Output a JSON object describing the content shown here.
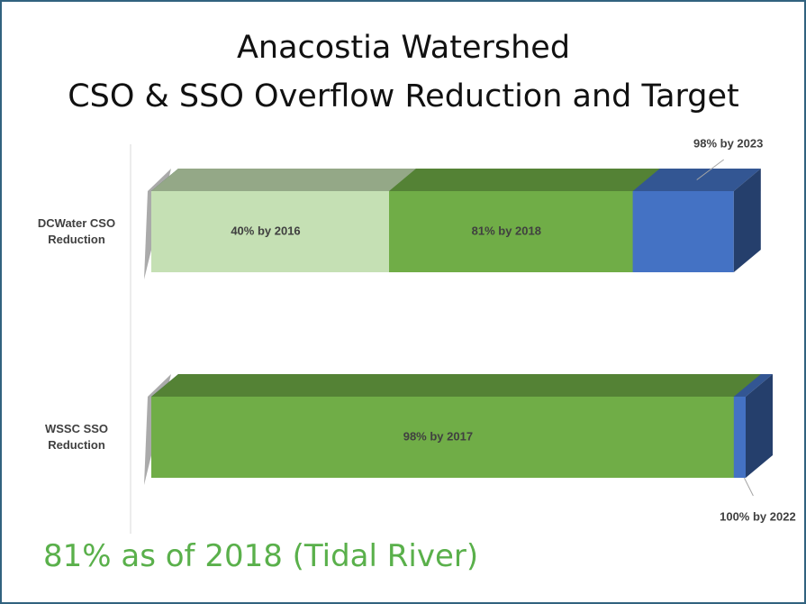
{
  "chart_data": {
    "type": "bar",
    "orientation": "horizontal",
    "overlap": true,
    "title": [
      "Anacostia Watershed",
      "CSO & SSO Overflow Reduction and Target"
    ],
    "categories": [
      "DCWater CSO Reduction",
      "WSSC SSO Reduction"
    ],
    "series": [
      {
        "color": "#4472c4",
        "values": [
          98,
          100
        ],
        "value_labels": [
          "98% by 2023",
          "100% by 2022"
        ]
      },
      {
        "color": "#70ad47",
        "values": [
          81,
          98
        ],
        "value_labels": [
          "81% by 2018",
          "98% by 2017"
        ]
      },
      {
        "color": "#c5e0b4",
        "values": [
          40,
          null
        ],
        "value_labels": [
          "40% by 2016",
          null
        ]
      }
    ],
    "xlim": [
      0,
      100
    ],
    "annotation": "81% as of 2018 (Tidal River)"
  }
}
